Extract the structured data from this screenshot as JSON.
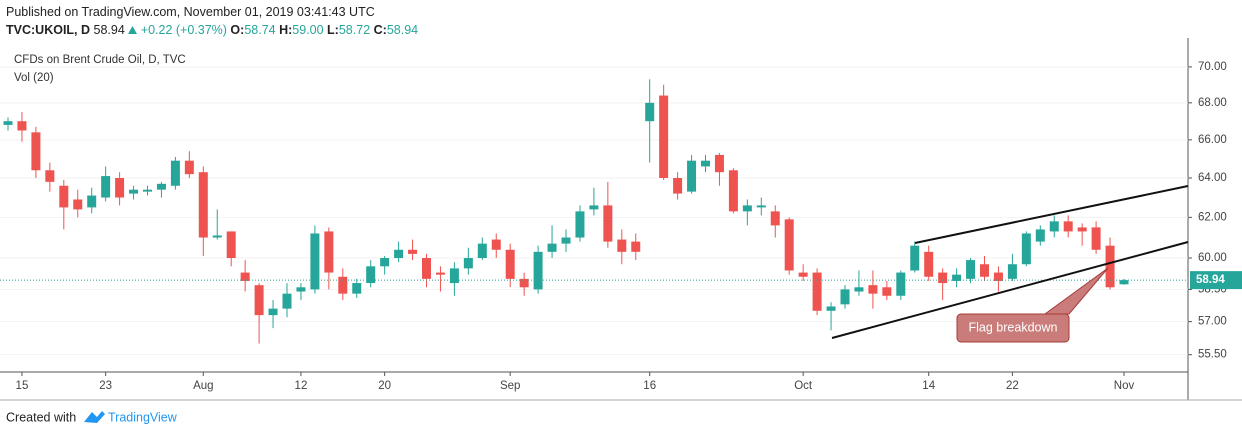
{
  "header": {
    "published": "Published on TradingView.com, November 01, 2019 03:41:43 UTC",
    "symbol": "TVC:UKOIL, D",
    "last": "58.94",
    "change": "+0.22 (+0.37%)",
    "ohlc": [
      {
        "label": "O:",
        "value": "58.74"
      },
      {
        "label": "H:",
        "value": "59.00"
      },
      {
        "label": "L:",
        "value": "58.72"
      },
      {
        "label": "C:",
        "value": "58.94"
      }
    ]
  },
  "chart_data": {
    "type": "candlestick",
    "title": "CFDs on Brent Crude Oil, D, TVC",
    "subtitle": "Vol (20)",
    "annotation": "Flag breakdown",
    "up_color": "#26a69a",
    "down_color": "#ef5350",
    "log_scale": true,
    "x": [
      null,
      "15",
      null,
      null,
      null,
      null,
      null,
      "23",
      null,
      null,
      null,
      null,
      null,
      null,
      "Aug",
      null,
      null,
      null,
      null,
      null,
      null,
      "12",
      null,
      null,
      null,
      null,
      null,
      "20",
      null,
      null,
      null,
      null,
      null,
      null,
      null,
      null,
      "Sep",
      null,
      null,
      null,
      null,
      null,
      null,
      null,
      null,
      null,
      "16",
      null,
      null,
      null,
      null,
      null,
      null,
      null,
      null,
      null,
      null,
      "Oct",
      null,
      null,
      null,
      null,
      null,
      null,
      null,
      null,
      "14",
      null,
      null,
      null,
      null,
      null,
      "22",
      null,
      null,
      null,
      null,
      null,
      null,
      null,
      "Nov"
    ],
    "open": [
      66.8,
      67.0,
      66.4,
      64.4,
      63.6,
      62.9,
      62.5,
      63.0,
      64.0,
      63.2,
      63.3,
      63.4,
      63.6,
      64.9,
      64.3,
      61.0,
      61.3,
      59.3,
      58.7,
      57.3,
      57.6,
      58.4,
      58.5,
      61.3,
      59.1,
      58.3,
      58.8,
      59.6,
      60.0,
      60.4,
      60.0,
      59.3,
      58.8,
      59.5,
      60.0,
      60.9,
      60.4,
      59.0,
      58.5,
      60.3,
      60.7,
      61.0,
      62.4,
      62.6,
      60.9,
      60.8,
      67.0,
      68.4,
      64.0,
      63.3,
      64.6,
      65.2,
      64.4,
      62.3,
      62.5,
      62.3,
      61.9,
      59.3,
      59.3,
      57.5,
      57.8,
      58.4,
      58.7,
      58.6,
      58.2,
      59.4,
      60.3,
      59.3,
      58.9,
      59.0,
      59.7,
      59.3,
      59.0,
      59.7,
      60.8,
      61.3,
      61.8,
      61.5,
      61.5,
      60.6,
      58.74
    ],
    "high": [
      67.2,
      67.5,
      66.7,
      64.8,
      63.9,
      63.4,
      63.5,
      64.6,
      64.3,
      63.6,
      63.6,
      63.8,
      65.1,
      65.4,
      64.6,
      62.4,
      61.3,
      59.9,
      58.8,
      58.0,
      58.8,
      58.8,
      61.6,
      61.5,
      59.5,
      59.0,
      59.9,
      60.1,
      60.8,
      60.9,
      60.2,
      59.6,
      59.8,
      60.5,
      61.0,
      61.2,
      60.7,
      59.3,
      60.6,
      61.6,
      61.4,
      62.6,
      63.5,
      63.8,
      61.4,
      61.2,
      69.3,
      69.0,
      64.3,
      65.2,
      65.2,
      65.3,
      64.5,
      62.9,
      63.0,
      62.6,
      62.0,
      59.7,
      59.5,
      57.9,
      58.7,
      59.4,
      59.4,
      58.9,
      59.4,
      60.8,
      60.6,
      59.5,
      59.5,
      60.0,
      60.1,
      59.6,
      60.2,
      61.3,
      61.6,
      62.1,
      62.1,
      61.7,
      61.8,
      61.0,
      59.0
    ],
    "low": [
      66.5,
      65.9,
      64.0,
      63.3,
      61.4,
      62.0,
      62.2,
      62.8,
      62.6,
      62.9,
      63.1,
      63.0,
      63.4,
      64.0,
      60.1,
      60.9,
      59.6,
      58.4,
      56.0,
      56.7,
      57.2,
      58.0,
      58.3,
      58.5,
      58.0,
      58.1,
      58.6,
      59.2,
      59.8,
      59.9,
      58.6,
      58.4,
      58.2,
      59.2,
      59.9,
      60.0,
      58.6,
      58.2,
      58.3,
      60.0,
      60.3,
      60.8,
      62.1,
      60.5,
      59.7,
      59.9,
      64.8,
      63.9,
      62.9,
      63.2,
      64.3,
      63.6,
      62.2,
      61.6,
      62.1,
      61.0,
      59.2,
      58.9,
      57.3,
      56.6,
      57.6,
      58.2,
      57.6,
      58.0,
      58.0,
      59.3,
      58.9,
      58.0,
      58.6,
      58.8,
      58.9,
      58.4,
      58.9,
      59.6,
      60.6,
      61.0,
      61.0,
      60.6,
      60.2,
      58.5,
      58.72
    ],
    "close": [
      67.0,
      66.5,
      64.4,
      63.8,
      62.5,
      62.4,
      63.1,
      64.1,
      63.0,
      63.4,
      63.4,
      63.7,
      64.9,
      64.2,
      61.0,
      61.1,
      60.0,
      58.9,
      57.3,
      57.6,
      58.3,
      58.6,
      61.2,
      59.3,
      58.3,
      58.8,
      59.6,
      60.0,
      60.4,
      60.2,
      59.0,
      59.2,
      59.5,
      60.0,
      60.7,
      60.4,
      59.0,
      58.6,
      60.3,
      60.7,
      61.0,
      62.3,
      62.6,
      60.8,
      60.3,
      60.3,
      68.0,
      64.0,
      63.2,
      64.9,
      64.9,
      64.3,
      62.3,
      62.6,
      62.6,
      61.6,
      59.4,
      59.1,
      57.5,
      57.7,
      58.5,
      58.6,
      58.3,
      58.2,
      59.3,
      60.6,
      59.1,
      58.8,
      59.2,
      59.9,
      59.1,
      58.9,
      59.7,
      61.2,
      61.4,
      61.8,
      61.3,
      61.3,
      60.4,
      58.6,
      58.94
    ],
    "ylim": [
      54.73,
      71.65
    ],
    "yticks": [
      {
        "value": 55.5,
        "label": "55.50"
      },
      {
        "value": 57,
        "label": "57.00"
      },
      {
        "value": 58.5,
        "label": "58.50"
      },
      {
        "value": 60,
        "label": "60.00"
      },
      {
        "value": 62,
        "label": "62.00"
      },
      {
        "value": 64,
        "label": "64.00"
      },
      {
        "value": 66,
        "label": "66.00"
      },
      {
        "value": 68,
        "label": "68.00"
      },
      {
        "value": 70,
        "label": "70.00"
      }
    ]
  },
  "footer": {
    "text": "Created with",
    "brand": "TradingView"
  }
}
